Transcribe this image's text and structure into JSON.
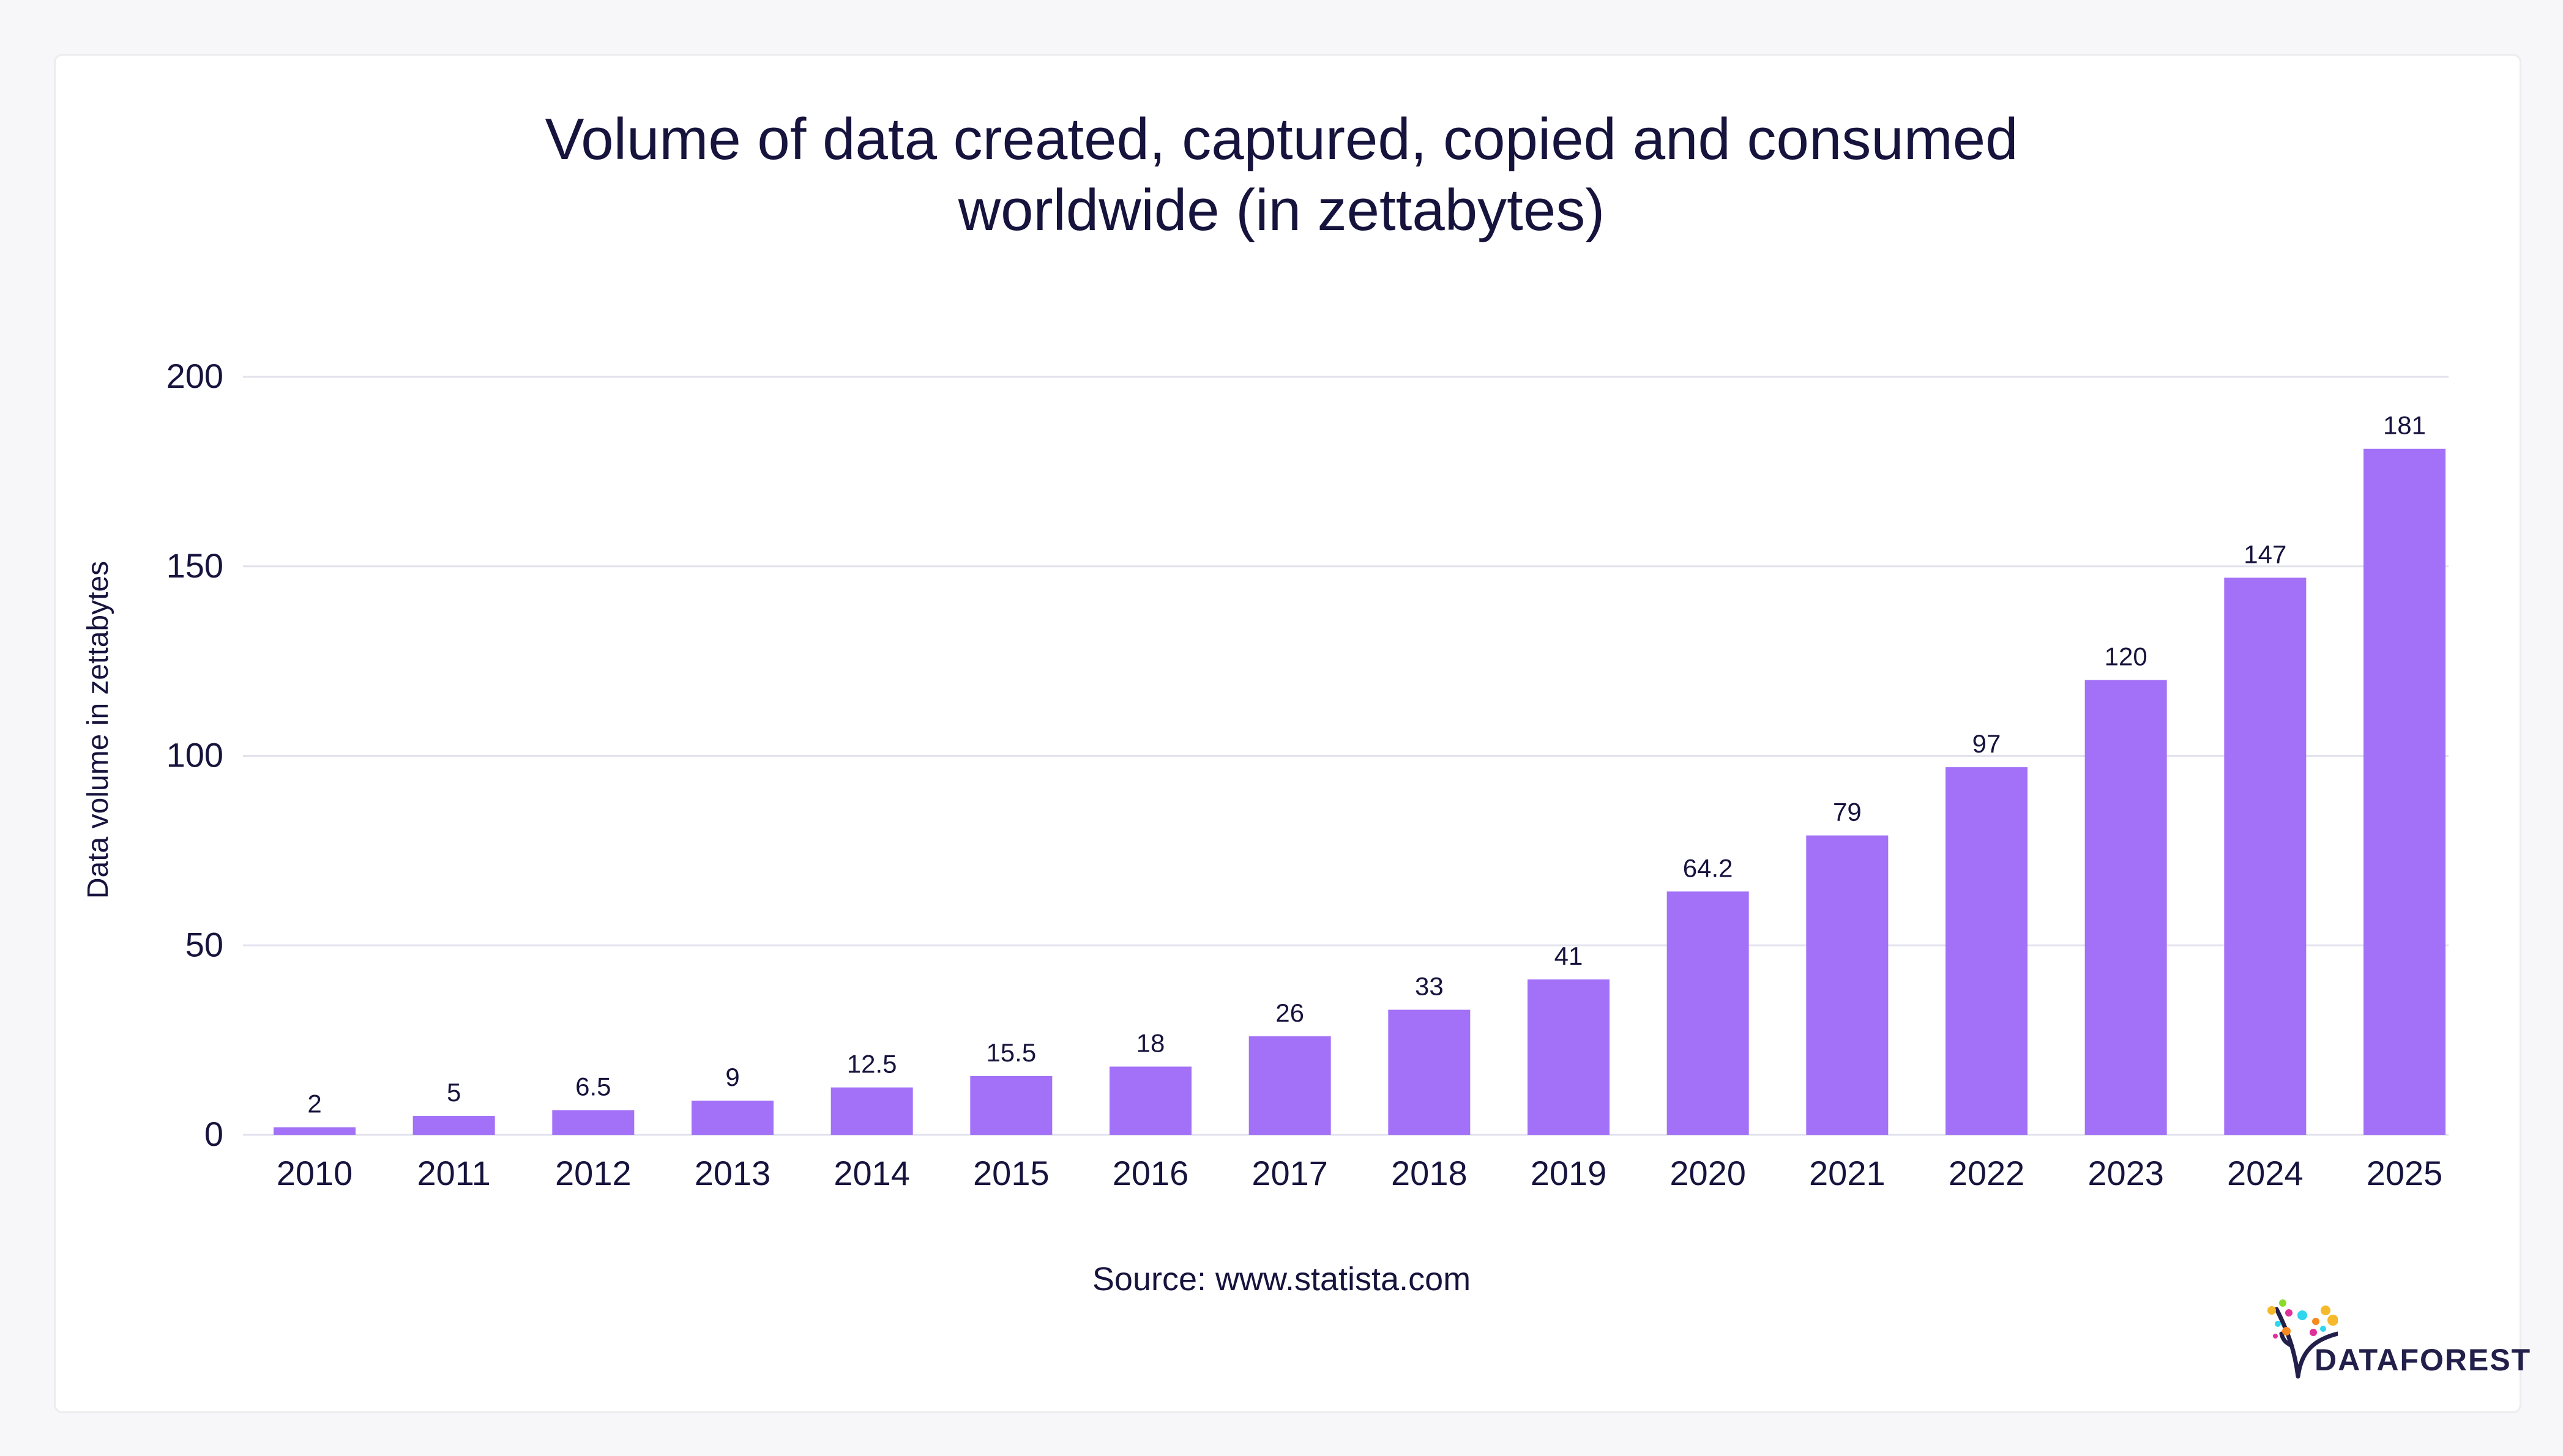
{
  "chart_data": {
    "type": "bar",
    "title_line1": "Volume of data created, captured, copied and consumed",
    "title_line2": "worldwide (in zettabytes)",
    "xlabel": "",
    "ylabel": "Data volume in zettabytes",
    "categories": [
      "2010",
      "2011",
      "2012",
      "2013",
      "2014",
      "2015",
      "2016",
      "2017",
      "2018",
      "2019",
      "2020",
      "2021",
      "2022",
      "2023",
      "2024",
      "2025"
    ],
    "values": [
      2,
      5,
      6.5,
      9,
      12.5,
      15.5,
      18,
      26,
      33,
      41,
      64.2,
      79,
      97,
      120,
      147,
      181
    ],
    "data_labels": [
      "2",
      "5",
      "6.5",
      "9",
      "12.5",
      "15.5",
      "18",
      "26",
      "33",
      "41",
      "64.2",
      "79",
      "97",
      "120",
      "147",
      "181"
    ],
    "ylim": [
      0,
      200
    ],
    "yticks": [
      "0",
      "50",
      "100",
      "150",
      "200"
    ],
    "grid": true,
    "bar_color": "#a371f7",
    "text_color": "#16133d",
    "grid_color": "#e2e2ee"
  },
  "source": "Source: www.statista.com",
  "logo": {
    "text": "DATAFOREST"
  }
}
